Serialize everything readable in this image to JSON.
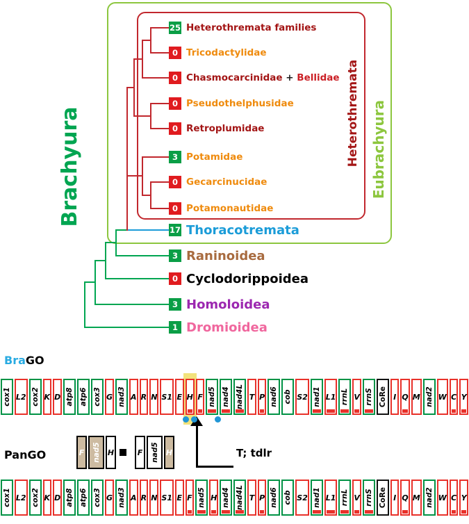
{
  "title_labels": {
    "brachyura": "Brachyura",
    "heterothremata": "Heterothremata",
    "eubrachyura": "Eubrachyura",
    "brago_prefix": "Bra",
    "brago_suffix": "GO",
    "pango": "PanGO",
    "mechanism": "T; tdlr"
  },
  "colors": {
    "green_border": "#009245",
    "red_border": "#e8312a",
    "black_border": "#111111",
    "minus_bar": "#e8312a",
    "highlight_yellow": "#f2e27c",
    "dot_blue": "#2196d6",
    "lost_fill": "#cdbba1",
    "spacer_black": "#000000",
    "tree_green": "#00a551",
    "tree_blue": "#1b9cd8",
    "tree_red": "#c1272d",
    "eubrachyura_green": "#8cc63e",
    "count_green": "#0a9e46",
    "count_red": "#e01b1f",
    "brago_label_blue": "#29abe2"
  },
  "tree": {
    "taxa": [
      {
        "parts": [
          {
            "text": "Heterothremata families",
            "color": "#a31515"
          }
        ],
        "count": "25",
        "box": "green",
        "font": "small"
      },
      {
        "parts": [
          {
            "text": "Tricodactylidae",
            "color": "#ef8b0e"
          }
        ],
        "count": "0",
        "box": "red",
        "font": "small"
      },
      {
        "parts": [
          {
            "text": "Chasmocarcinidae ",
            "color": "#a31515"
          },
          {
            "text": "+ ",
            "color": "#1a1a1a"
          },
          {
            "text": "Bellidae",
            "color": "#cb2026"
          }
        ],
        "count": "0",
        "box": "red",
        "font": "small"
      },
      {
        "parts": [
          {
            "text": "Pseudothelphusidae",
            "color": "#ef8b0e"
          }
        ],
        "count": "0",
        "box": "red",
        "font": "small"
      },
      {
        "parts": [
          {
            "text": "Retroplumidae",
            "color": "#a31515"
          }
        ],
        "count": "0",
        "box": "red",
        "font": "small"
      },
      {
        "parts": [
          {
            "text": "Potamidae",
            "color": "#ef8b0e"
          }
        ],
        "count": "3",
        "box": "green",
        "font": "small"
      },
      {
        "parts": [
          {
            "text": "Gecarcinucidae",
            "color": "#ef8b0e"
          }
        ],
        "count": "0",
        "box": "red",
        "font": "small"
      },
      {
        "parts": [
          {
            "text": "Potamonautidae",
            "color": "#ef8b0e"
          }
        ],
        "count": "0",
        "box": "red",
        "font": "small"
      },
      {
        "parts": [
          {
            "text": "Thoracotremata",
            "color": "#1b9cd8"
          }
        ],
        "count": "17",
        "box": "green",
        "font": "large"
      },
      {
        "parts": [
          {
            "text": "Raninoidea",
            "color": "#a86b3f"
          }
        ],
        "count": "3",
        "box": "green",
        "font": "large"
      },
      {
        "parts": [
          {
            "text": "Cyclodorippoidea",
            "color": "#000000"
          }
        ],
        "count": "0",
        "box": "red",
        "font": "large"
      },
      {
        "parts": [
          {
            "text": "Homoloidea",
            "color": "#9c27b0"
          }
        ],
        "count": "3",
        "box": "green",
        "font": "large"
      },
      {
        "parts": [
          {
            "text": "Dromioidea",
            "color": "#f0679e"
          }
        ],
        "count": "1",
        "box": "green",
        "font": "large"
      }
    ]
  },
  "gene_maps": {
    "brago": [
      {
        "n": "cox1",
        "b": "g",
        "s": "+"
      },
      {
        "n": "L2",
        "b": "t",
        "s": "+"
      },
      {
        "n": "cox2",
        "b": "g",
        "s": "+"
      },
      {
        "n": "K",
        "b": "t",
        "s": "+"
      },
      {
        "n": "D",
        "b": "t",
        "s": "+"
      },
      {
        "n": "atp8",
        "b": "g",
        "s": "+"
      },
      {
        "n": "atp6",
        "b": "g",
        "s": "+"
      },
      {
        "n": "cox3",
        "b": "g",
        "s": "+"
      },
      {
        "n": "G",
        "b": "t",
        "s": "+"
      },
      {
        "n": "nad3",
        "b": "g",
        "s": "+"
      },
      {
        "n": "A",
        "b": "t",
        "s": "+"
      },
      {
        "n": "R",
        "b": "t",
        "s": "+"
      },
      {
        "n": "N",
        "b": "t",
        "s": "+"
      },
      {
        "n": "S1",
        "b": "t",
        "s": "+"
      },
      {
        "n": "E",
        "b": "t",
        "s": "+"
      },
      {
        "n": "H",
        "b": "t",
        "s": "-",
        "hl": true,
        "dots": [
          "l",
          "r"
        ]
      },
      {
        "n": "F",
        "b": "t",
        "s": "-"
      },
      {
        "n": "nad5",
        "b": "g",
        "s": "-",
        "dots": [
          "r"
        ]
      },
      {
        "n": "nad4",
        "b": "g",
        "s": "-"
      },
      {
        "n": "nad4L",
        "b": "g",
        "s": "-"
      },
      {
        "n": "T",
        "b": "t",
        "s": "+"
      },
      {
        "n": "P",
        "b": "t",
        "s": "-"
      },
      {
        "n": "nad6",
        "b": "g",
        "s": "+"
      },
      {
        "n": "cob",
        "b": "g",
        "s": "+"
      },
      {
        "n": "S2",
        "b": "t",
        "s": "+"
      },
      {
        "n": "nad1",
        "b": "g",
        "s": "-"
      },
      {
        "n": "L1",
        "b": "t",
        "s": "-"
      },
      {
        "n": "rrnL",
        "b": "g",
        "s": "-"
      },
      {
        "n": "V",
        "b": "t",
        "s": "-"
      },
      {
        "n": "rrnS",
        "b": "g",
        "s": "-"
      },
      {
        "n": "CoRe",
        "b": "c",
        "s": "+"
      },
      {
        "n": "I",
        "b": "t",
        "s": "+"
      },
      {
        "n": "Q",
        "b": "t",
        "s": "-"
      },
      {
        "n": "M",
        "b": "t",
        "s": "+"
      },
      {
        "n": "nad2",
        "b": "g",
        "s": "+"
      },
      {
        "n": "W",
        "b": "t",
        "s": "+"
      },
      {
        "n": "C",
        "b": "t",
        "s": "-"
      },
      {
        "n": "Y",
        "b": "t",
        "s": "-"
      }
    ],
    "pango": [
      {
        "n": "cox1",
        "b": "g",
        "s": "+"
      },
      {
        "n": "L2",
        "b": "t",
        "s": "+"
      },
      {
        "n": "cox2",
        "b": "g",
        "s": "+"
      },
      {
        "n": "K",
        "b": "t",
        "s": "+"
      },
      {
        "n": "D",
        "b": "t",
        "s": "+"
      },
      {
        "n": "atp8",
        "b": "g",
        "s": "+"
      },
      {
        "n": "atp6",
        "b": "g",
        "s": "+"
      },
      {
        "n": "cox3",
        "b": "g",
        "s": "+"
      },
      {
        "n": "G",
        "b": "t",
        "s": "+"
      },
      {
        "n": "nad3",
        "b": "g",
        "s": "+"
      },
      {
        "n": "A",
        "b": "t",
        "s": "+"
      },
      {
        "n": "R",
        "b": "t",
        "s": "+"
      },
      {
        "n": "N",
        "b": "t",
        "s": "+"
      },
      {
        "n": "S1",
        "b": "t",
        "s": "+"
      },
      {
        "n": "E",
        "b": "t",
        "s": "+"
      },
      {
        "n": "F",
        "b": "t",
        "s": "-"
      },
      {
        "n": "nad5",
        "b": "g",
        "s": "-"
      },
      {
        "n": "H",
        "b": "t",
        "s": "-"
      },
      {
        "n": "nad4",
        "b": "g",
        "s": "-"
      },
      {
        "n": "nad4L",
        "b": "g",
        "s": "-"
      },
      {
        "n": "T",
        "b": "t",
        "s": "+"
      },
      {
        "n": "P",
        "b": "t",
        "s": "-"
      },
      {
        "n": "nad6",
        "b": "g",
        "s": "+"
      },
      {
        "n": "cob",
        "b": "g",
        "s": "+"
      },
      {
        "n": "S2",
        "b": "t",
        "s": "+"
      },
      {
        "n": "nad1",
        "b": "g",
        "s": "-"
      },
      {
        "n": "L1",
        "b": "t",
        "s": "-"
      },
      {
        "n": "rrnL",
        "b": "g",
        "s": "-"
      },
      {
        "n": "V",
        "b": "t",
        "s": "-"
      },
      {
        "n": "rrnS",
        "b": "g",
        "s": "-"
      },
      {
        "n": "CoRe",
        "b": "c",
        "s": "+"
      },
      {
        "n": "I",
        "b": "t",
        "s": "+"
      },
      {
        "n": "Q",
        "b": "t",
        "s": "-"
      },
      {
        "n": "M",
        "b": "t",
        "s": "+"
      },
      {
        "n": "nad2",
        "b": "g",
        "s": "+"
      },
      {
        "n": "W",
        "b": "t",
        "s": "+"
      },
      {
        "n": "C",
        "b": "t",
        "s": "-"
      },
      {
        "n": "Y",
        "b": "t",
        "s": "-"
      }
    ],
    "duplication": [
      {
        "n": "F",
        "b": "t",
        "lost": true
      },
      {
        "n": "nad5",
        "b": "g",
        "lost": true
      },
      {
        "n": "H",
        "b": "t",
        "lost": false
      },
      {
        "type": "spacer"
      },
      {
        "type": "gap"
      },
      {
        "n": "F",
        "b": "t",
        "lost": false
      },
      {
        "n": "nad5",
        "b": "g",
        "lost": false
      },
      {
        "n": "H",
        "b": "t",
        "lost": true
      }
    ]
  }
}
